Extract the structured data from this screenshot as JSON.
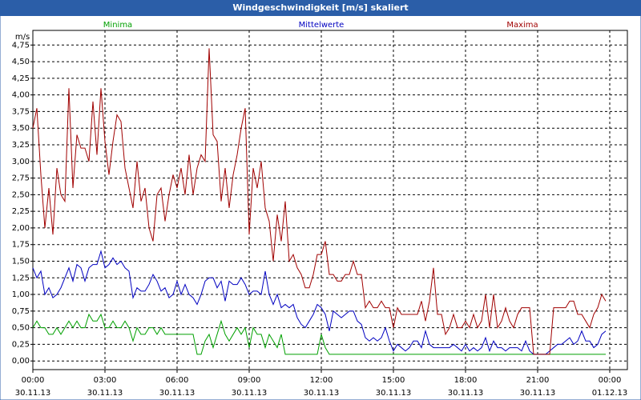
{
  "chart_data": {
    "type": "line",
    "title": "Windgeschwindigkeit [m/s] skaliert",
    "y_unit": "m/s",
    "x": [
      0,
      10,
      20,
      30,
      40,
      50,
      60,
      70,
      80,
      90,
      100,
      110,
      120,
      130,
      140,
      150,
      160,
      170,
      180,
      190,
      200,
      210,
      220,
      230,
      240,
      250,
      260,
      270,
      280,
      290,
      300,
      310,
      320,
      330,
      340,
      350,
      360,
      370,
      380,
      390,
      400,
      410,
      420,
      430,
      440,
      450,
      460,
      470,
      480,
      490,
      500,
      510,
      520,
      530,
      540,
      550,
      560,
      570,
      580,
      590,
      600,
      610,
      620,
      630,
      640,
      650,
      660,
      670,
      680,
      690,
      700,
      710,
      720,
      730,
      740,
      750,
      760,
      770,
      780,
      790,
      800,
      810,
      820,
      830,
      840,
      850,
      860,
      870,
      880,
      890,
      900,
      910,
      920,
      930,
      940,
      950,
      960,
      970,
      980,
      990,
      1000,
      1010,
      1020,
      1030,
      1040,
      1050,
      1060,
      1070,
      1080,
      1090,
      1100,
      1110,
      1120,
      1130,
      1140,
      1150,
      1160,
      1170,
      1180,
      1190,
      1200,
      1210,
      1220,
      1230,
      1240,
      1250,
      1260,
      1270,
      1280,
      1290,
      1300,
      1310,
      1320,
      1330,
      1340,
      1350,
      1360,
      1370,
      1380,
      1390,
      1400,
      1410,
      1420,
      1430
    ],
    "series": [
      {
        "name": "Minima",
        "color": "#00a000",
        "values": [
          0.5,
          0.6,
          0.5,
          0.5,
          0.4,
          0.4,
          0.5,
          0.4,
          0.5,
          0.6,
          0.5,
          0.6,
          0.5,
          0.5,
          0.7,
          0.6,
          0.6,
          0.7,
          0.5,
          0.5,
          0.6,
          0.5,
          0.5,
          0.6,
          0.5,
          0.3,
          0.5,
          0.4,
          0.4,
          0.5,
          0.5,
          0.4,
          0.5,
          0.4,
          0.4,
          0.4,
          0.4,
          0.4,
          0.4,
          0.4,
          0.4,
          0.1,
          0.1,
          0.3,
          0.4,
          0.2,
          0.4,
          0.6,
          0.4,
          0.3,
          0.4,
          0.5,
          0.4,
          0.5,
          0.2,
          0.5,
          0.4,
          0.4,
          0.2,
          0.4,
          0.3,
          0.2,
          0.4,
          0.1,
          0.1,
          0.1,
          0.1,
          0.1,
          0.1,
          0.1,
          0.1,
          0.1,
          0.4,
          0.2,
          0.1,
          0.1,
          0.1,
          0.1,
          0.1,
          0.1,
          0.1,
          0.1,
          0.1,
          0.1,
          0.1,
          0.1,
          0.1,
          0.1,
          0.1,
          0.1,
          0.1,
          0.1,
          0.1,
          0.1,
          0.1,
          0.1,
          0.1,
          0.1,
          0.1,
          0.1,
          0.1,
          0.1,
          0.1,
          0.1,
          0.1,
          0.1,
          0.1,
          0.1,
          0.1,
          0.1,
          0.1,
          0.1,
          0.1,
          0.1,
          0.1,
          0.1,
          0.1,
          0.1,
          0.1,
          0.1,
          0.1,
          0.1,
          0.1,
          0.1,
          0.1,
          0.1,
          0.1,
          0.1,
          0.1,
          0.1,
          0.1,
          0.1,
          0.1,
          0.1,
          0.1,
          0.1,
          0.1,
          0.1,
          0.1,
          0.1,
          0.1,
          0.1,
          0.1,
          0.1
        ]
      },
      {
        "name": "Mittelwerte",
        "color": "#0000c0",
        "values": [
          1.4,
          1.25,
          1.35,
          1.0,
          1.1,
          0.95,
          1.0,
          1.1,
          1.25,
          1.4,
          1.2,
          1.45,
          1.4,
          1.2,
          1.4,
          1.45,
          1.45,
          1.65,
          1.4,
          1.45,
          1.55,
          1.45,
          1.5,
          1.4,
          1.35,
          0.95,
          1.1,
          1.05,
          1.05,
          1.15,
          1.3,
          1.2,
          1.05,
          1.1,
          0.95,
          1.0,
          1.2,
          1.0,
          1.15,
          1.0,
          0.95,
          0.85,
          1.0,
          1.2,
          1.25,
          1.25,
          1.1,
          1.2,
          0.9,
          1.2,
          1.15,
          1.15,
          1.25,
          1.15,
          1.0,
          1.05,
          1.05,
          1.0,
          1.35,
          1.0,
          0.85,
          1.0,
          0.8,
          0.85,
          0.8,
          0.85,
          0.65,
          0.55,
          0.5,
          0.6,
          0.7,
          0.85,
          0.8,
          0.7,
          0.45,
          0.75,
          0.7,
          0.65,
          0.7,
          0.75,
          0.75,
          0.6,
          0.55,
          0.35,
          0.3,
          0.35,
          0.3,
          0.35,
          0.5,
          0.3,
          0.15,
          0.25,
          0.2,
          0.15,
          0.2,
          0.3,
          0.3,
          0.2,
          0.45,
          0.25,
          0.2,
          0.2,
          0.2,
          0.2,
          0.2,
          0.25,
          0.2,
          0.15,
          0.25,
          0.15,
          0.2,
          0.15,
          0.2,
          0.35,
          0.15,
          0.3,
          0.2,
          0.2,
          0.15,
          0.2,
          0.2,
          0.2,
          0.15,
          0.3,
          0.15,
          0.1,
          0.1,
          0.1,
          0.1,
          0.15,
          0.2,
          0.25,
          0.25,
          0.3,
          0.35,
          0.25,
          0.3,
          0.45,
          0.3,
          0.3,
          0.2,
          0.25,
          0.4,
          0.45
        ]
      },
      {
        "name": "Maxima",
        "color": "#a00000",
        "values": [
          3.5,
          3.8,
          2.8,
          2.0,
          2.6,
          1.9,
          2.9,
          2.5,
          2.4,
          4.1,
          2.6,
          3.4,
          3.2,
          3.2,
          3.0,
          3.9,
          3.1,
          4.1,
          3.3,
          2.8,
          3.3,
          3.7,
          3.6,
          2.9,
          2.6,
          2.3,
          3.0,
          2.4,
          2.6,
          2.0,
          1.8,
          2.5,
          2.6,
          2.1,
          2.5,
          2.8,
          2.6,
          2.9,
          2.5,
          3.1,
          2.5,
          2.9,
          3.1,
          3.0,
          4.7,
          3.4,
          3.3,
          2.4,
          2.9,
          2.3,
          2.8,
          3.1,
          3.5,
          3.8,
          1.9,
          2.9,
          2.6,
          3.0,
          2.3,
          2.1,
          1.5,
          2.2,
          1.8,
          2.4,
          1.5,
          1.6,
          1.4,
          1.3,
          1.1,
          1.1,
          1.3,
          1.6,
          1.6,
          1.8,
          1.3,
          1.3,
          1.2,
          1.2,
          1.3,
          1.3,
          1.5,
          1.3,
          1.3,
          0.8,
          0.9,
          0.8,
          0.8,
          0.9,
          0.8,
          0.8,
          0.5,
          0.8,
          0.7,
          0.7,
          0.7,
          0.7,
          0.7,
          0.9,
          0.6,
          0.9,
          1.4,
          0.7,
          0.7,
          0.4,
          0.5,
          0.7,
          0.5,
          0.5,
          0.6,
          0.5,
          0.7,
          0.5,
          0.6,
          1.0,
          0.5,
          1.0,
          0.5,
          0.6,
          0.8,
          0.6,
          0.5,
          0.7,
          0.8,
          0.8,
          0.8,
          0.1,
          0.1,
          0.1,
          0.1,
          0.1,
          0.8,
          0.8,
          0.8,
          0.8,
          0.9,
          0.9,
          0.7,
          0.7,
          0.6,
          0.5,
          0.7,
          0.8,
          1.0,
          0.9
        ]
      }
    ],
    "xlim": [
      0,
      1484
    ],
    "xticks": [
      {
        "value": 0,
        "label": "00:00",
        "date": "30.11.13"
      },
      {
        "value": 180,
        "label": "03:00",
        "date": "30.11.13"
      },
      {
        "value": 360,
        "label": "06:00",
        "date": "30.11.13"
      },
      {
        "value": 540,
        "label": "09:00",
        "date": "30.11.13"
      },
      {
        "value": 720,
        "label": "12:00",
        "date": "30.11.13"
      },
      {
        "value": 900,
        "label": "15:00",
        "date": "30.11.13"
      },
      {
        "value": 1080,
        "label": "18:00",
        "date": "30.11.13"
      },
      {
        "value": 1260,
        "label": "21:00",
        "date": "30.11.13"
      },
      {
        "value": 1440,
        "label": "00:00",
        "date": "01.12.13"
      }
    ],
    "ylim": [
      -0.13,
      4.97
    ],
    "yticks": [
      {
        "value": 0,
        "label": "0,00"
      },
      {
        "value": 0.25,
        "label": "0,25"
      },
      {
        "value": 0.5,
        "label": "0,50"
      },
      {
        "value": 0.75,
        "label": "0,75"
      },
      {
        "value": 1,
        "label": "1,00"
      },
      {
        "value": 1.25,
        "label": "1,25"
      },
      {
        "value": 1.5,
        "label": "1,50"
      },
      {
        "value": 1.75,
        "label": "1,75"
      },
      {
        "value": 2,
        "label": "2,00"
      },
      {
        "value": 2.25,
        "label": "2,25"
      },
      {
        "value": 2.5,
        "label": "2,50"
      },
      {
        "value": 2.75,
        "label": "2,75"
      },
      {
        "value": 3,
        "label": "3,00"
      },
      {
        "value": 3.25,
        "label": "3,25"
      },
      {
        "value": 3.5,
        "label": "3,50"
      },
      {
        "value": 3.75,
        "label": "3,75"
      },
      {
        "value": 4,
        "label": "4,00"
      },
      {
        "value": 4.25,
        "label": "4,25"
      },
      {
        "value": 4.5,
        "label": "4,50"
      },
      {
        "value": 4.75,
        "label": "4,75"
      }
    ],
    "grid": true
  }
}
